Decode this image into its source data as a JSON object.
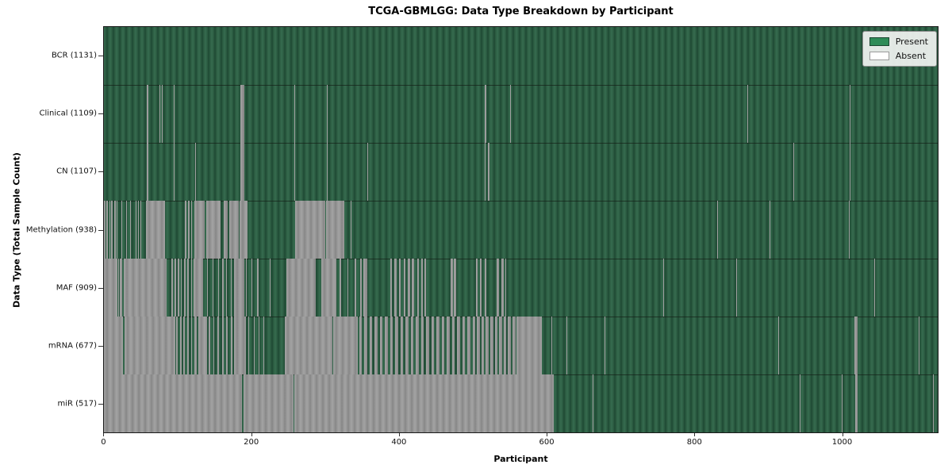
{
  "title": "TCGA-GBMLGG: Data Type Breakdown by Participant",
  "x_axis_label": "Participant",
  "y_axis_label": "Data Type (Total Sample Count)",
  "legend": {
    "present_label": "Present",
    "absent_label": "Absent",
    "present_color": "#2e8b57",
    "present_edge_color": "#1c4631",
    "absent_color": "#ffffff",
    "absent_edge_color": "#9a9a9a"
  },
  "colors": {
    "present_fill": "#2a5a40",
    "absent_fill": "#949494",
    "spine": "#1a1a1a",
    "background": "#ffffff"
  },
  "chart_data": {
    "type": "heatmap",
    "title": "TCGA-GBMLGG: Data Type Breakdown by Participant",
    "xlabel": "Participant",
    "ylabel": "Data Type (Total Sample Count)",
    "x_ticks": [
      0,
      200,
      400,
      600,
      800,
      1000
    ],
    "x_range": [
      0,
      1131
    ],
    "n_participants": 1131,
    "legend_position": "upper right",
    "cell_states": {
      "present": 1,
      "absent": 0
    },
    "rows": [
      {
        "label": "BCR (1131)",
        "datatype": "BCR",
        "total_sample_count": 1131,
        "absent_segments": []
      },
      {
        "label": "Clinical (1109)",
        "datatype": "Clinical",
        "total_sample_count": 1109,
        "absent_segments": [
          [
            58,
            60
          ],
          [
            75,
            76
          ],
          [
            79,
            80
          ],
          [
            95,
            96
          ],
          [
            105,
            106
          ],
          [
            185,
            190
          ],
          [
            258,
            259
          ],
          [
            302,
            303
          ],
          [
            360,
            361
          ],
          [
            517,
            519
          ],
          [
            551,
            552
          ],
          [
            873,
            874
          ],
          [
            1012,
            1013
          ]
        ]
      },
      {
        "label": "CN (1107)",
        "datatype": "CN",
        "total_sample_count": 1107,
        "absent_segments": [
          [
            58,
            60
          ],
          [
            77,
            78
          ],
          [
            95,
            96
          ],
          [
            105,
            106
          ],
          [
            124,
            125
          ],
          [
            185,
            190
          ],
          [
            258,
            259
          ],
          [
            302,
            303
          ],
          [
            357,
            358
          ],
          [
            516,
            518
          ],
          [
            521,
            523
          ],
          [
            935,
            936
          ],
          [
            1012,
            1013
          ]
        ]
      },
      {
        "label": "Methylation (938)",
        "datatype": "Methylation",
        "total_sample_count": 938,
        "absent_segments": [
          [
            0,
            2
          ],
          [
            3,
            5
          ],
          [
            7,
            9
          ],
          [
            10,
            12
          ],
          [
            14,
            16
          ],
          [
            17,
            18
          ],
          [
            24,
            25
          ],
          [
            30,
            31
          ],
          [
            36,
            37
          ],
          [
            43,
            44
          ],
          [
            46,
            47
          ],
          [
            50,
            51
          ],
          [
            57,
            83
          ],
          [
            110,
            112
          ],
          [
            114,
            116
          ],
          [
            118,
            120
          ],
          [
            123,
            137
          ],
          [
            139,
            158
          ],
          [
            162,
            168
          ],
          [
            170,
            183
          ],
          [
            184,
            195
          ],
          [
            259,
            300
          ],
          [
            301,
            326
          ],
          [
            335,
            336
          ],
          [
            832,
            833
          ],
          [
            903,
            904
          ],
          [
            1011,
            1012
          ]
        ]
      },
      {
        "label": "MAF (909)",
        "datatype": "MAF",
        "total_sample_count": 909,
        "absent_segments": [
          [
            0,
            18
          ],
          [
            19,
            20
          ],
          [
            21,
            25
          ],
          [
            27,
            85
          ],
          [
            92,
            94
          ],
          [
            96,
            98
          ],
          [
            100,
            102
          ],
          [
            104,
            106
          ],
          [
            109,
            111
          ],
          [
            113,
            115
          ],
          [
            118,
            120
          ],
          [
            122,
            135
          ],
          [
            140,
            141
          ],
          [
            147,
            148
          ],
          [
            155,
            156
          ],
          [
            160,
            162
          ],
          [
            166,
            167
          ],
          [
            172,
            173
          ],
          [
            176,
            190
          ],
          [
            193,
            194
          ],
          [
            200,
            201
          ],
          [
            208,
            210
          ],
          [
            225,
            226
          ],
          [
            247,
            287
          ],
          [
            295,
            315
          ],
          [
            320,
            322
          ],
          [
            330,
            331
          ],
          [
            340,
            342
          ],
          [
            348,
            350
          ],
          [
            352,
            357
          ],
          [
            389,
            391
          ],
          [
            394,
            397
          ],
          [
            400,
            403
          ],
          [
            407,
            409
          ],
          [
            412,
            415
          ],
          [
            418,
            421
          ],
          [
            425,
            427
          ],
          [
            430,
            433
          ],
          [
            435,
            437
          ],
          [
            470,
            473
          ],
          [
            475,
            478
          ],
          [
            505,
            507
          ],
          [
            510,
            512
          ],
          [
            516,
            519
          ],
          [
            533,
            536
          ],
          [
            539,
            542
          ],
          [
            544,
            546
          ],
          [
            759,
            760
          ],
          [
            858,
            859
          ],
          [
            1045,
            1046
          ]
        ]
      },
      {
        "label": "mRNA (677)",
        "datatype": "mRNA",
        "total_sample_count": 677,
        "absent_segments": [
          [
            0,
            26
          ],
          [
            28,
            97
          ],
          [
            98,
            100
          ],
          [
            103,
            105
          ],
          [
            108,
            110
          ],
          [
            113,
            115
          ],
          [
            118,
            120
          ],
          [
            123,
            126
          ],
          [
            128,
            140
          ],
          [
            142,
            144
          ],
          [
            148,
            150
          ],
          [
            154,
            156
          ],
          [
            160,
            162
          ],
          [
            166,
            168
          ],
          [
            172,
            174
          ],
          [
            176,
            193
          ],
          [
            196,
            197
          ],
          [
            203,
            204
          ],
          [
            210,
            211
          ],
          [
            216,
            217
          ],
          [
            245,
            310
          ],
          [
            311,
            344
          ],
          [
            346,
            350
          ],
          [
            353,
            357
          ],
          [
            360,
            364
          ],
          [
            367,
            371
          ],
          [
            374,
            378
          ],
          [
            381,
            385
          ],
          [
            388,
            392
          ],
          [
            395,
            399
          ],
          [
            402,
            406
          ],
          [
            409,
            413
          ],
          [
            416,
            420
          ],
          [
            423,
            427
          ],
          [
            430,
            434
          ],
          [
            437,
            441
          ],
          [
            444,
            448
          ],
          [
            451,
            455
          ],
          [
            458,
            462
          ],
          [
            465,
            469
          ],
          [
            472,
            476
          ],
          [
            479,
            483
          ],
          [
            486,
            490
          ],
          [
            493,
            497
          ],
          [
            500,
            504
          ],
          [
            506,
            510
          ],
          [
            512,
            516
          ],
          [
            518,
            522
          ],
          [
            524,
            528
          ],
          [
            530,
            534
          ],
          [
            536,
            540
          ],
          [
            542,
            546
          ],
          [
            548,
            552
          ],
          [
            554,
            558
          ],
          [
            560,
            594
          ],
          [
            607,
            608
          ],
          [
            627,
            628
          ],
          [
            679,
            680
          ],
          [
            915,
            916
          ],
          [
            1018,
            1022
          ],
          [
            1105,
            1106
          ]
        ]
      },
      {
        "label": "miR (517)",
        "datatype": "miR",
        "total_sample_count": 517,
        "absent_segments": [
          [
            0,
            187
          ],
          [
            189,
            257
          ],
          [
            258,
            610
          ],
          [
            663,
            664
          ],
          [
            713,
            714
          ],
          [
            944,
            945
          ],
          [
            968,
            969
          ],
          [
            1001,
            1002
          ],
          [
            1019,
            1022
          ],
          [
            1125,
            1126
          ]
        ]
      }
    ]
  }
}
